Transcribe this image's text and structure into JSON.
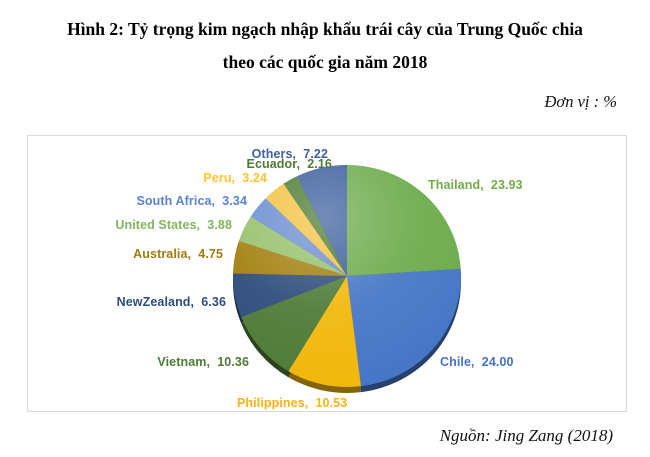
{
  "figure": {
    "title_line1": "Hình 2: Tỷ trọng kim ngạch nhập khẩu trái cây của Trung Quốc chia",
    "title_line2": "theo các quốc gia năm 2018",
    "unit_note": "Đơn vị : %",
    "source_note": "Nguồn: Jing Zang (2018)"
  },
  "chart_data": {
    "type": "pie",
    "title": "Tỷ trọng kim ngạch nhập khẩu trái cây của Trung Quốc chia theo các quốc gia năm 2018",
    "unit": "%",
    "start_angle_deg": -90,
    "direction": "clockwise",
    "legend_position": "none",
    "label_format": "category, value (outside, colored like slice)",
    "categories": [
      "Thailand",
      "Chile",
      "Philippines",
      "Vietnam",
      "NewZealand",
      "Australia",
      "United States",
      "South Africa",
      "Peru",
      "Ecuador",
      "Others"
    ],
    "values": [
      23.93,
      24.0,
      10.53,
      10.36,
      6.36,
      4.75,
      3.88,
      3.34,
      3.24,
      2.16,
      7.22
    ],
    "slice_colors": [
      "#6dab4c",
      "#4677c6",
      "#f1b80d",
      "#4f7b38",
      "#2e4c7c",
      "#a3800f",
      "#96c16c",
      "#6c8ecf",
      "#f3c242",
      "#4e7b33",
      "#3c5f9e"
    ],
    "label_colors": [
      "#70ad47",
      "#4472c4",
      "#ffb112",
      "#4e7b33",
      "#2e4c7c",
      "#9e7c0c",
      "#7fb85c",
      "#5c83ce",
      "#ffc32b",
      "#4e7b33",
      "#3f5f9e"
    ]
  }
}
